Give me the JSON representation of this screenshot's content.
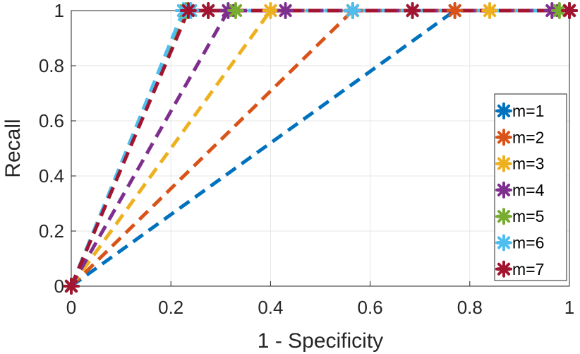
{
  "chart_data": {
    "type": "line",
    "xlabel": "1 - Specificity",
    "ylabel": "Recall",
    "xlim": [
      0,
      1
    ],
    "ylim": [
      0,
      1
    ],
    "xticks": [
      "0",
      "0.2",
      "0.4",
      "0.6",
      "0.8",
      "1"
    ],
    "yticks": [
      "0",
      "0.2",
      "0.4",
      "0.6",
      "0.8",
      "1"
    ],
    "grid": true,
    "legend_position": "right",
    "line_style": "dashed",
    "marker": "asterisk",
    "series": [
      {
        "name": "m=1",
        "color": "#0072BD",
        "x": [
          0,
          0.77,
          1.0
        ],
        "y": [
          0,
          1,
          1
        ]
      },
      {
        "name": "m=2",
        "color": "#D95319",
        "x": [
          0,
          0.565,
          0.77,
          1.0
        ],
        "y": [
          0,
          1,
          1,
          1
        ]
      },
      {
        "name": "m=3",
        "color": "#EDB120",
        "x": [
          0,
          0.4,
          0.565,
          0.84,
          1.0
        ],
        "y": [
          0,
          1,
          1,
          1,
          1
        ]
      },
      {
        "name": "m=4",
        "color": "#7E2F8E",
        "x": [
          0,
          0.315,
          0.43,
          0.965,
          1.0
        ],
        "y": [
          0,
          1,
          1,
          1,
          1
        ]
      },
      {
        "name": "m=5",
        "color": "#77AC30",
        "x": [
          0,
          0.23,
          0.275,
          0.33,
          0.98,
          1.0
        ],
        "y": [
          0,
          1,
          1,
          1,
          1,
          1
        ]
      },
      {
        "name": "m=6",
        "color": "#4DBEEE",
        "x": [
          0,
          0.225,
          0.24,
          0.275,
          0.565,
          0.685,
          1.0
        ],
        "y": [
          0,
          1,
          1,
          1,
          1,
          1,
          1
        ]
      },
      {
        "name": "m=7",
        "color": "#A2142F",
        "x": [
          0,
          0.235,
          0.275,
          0.685,
          1.0
        ],
        "y": [
          0,
          1,
          1,
          1,
          1
        ]
      }
    ]
  }
}
